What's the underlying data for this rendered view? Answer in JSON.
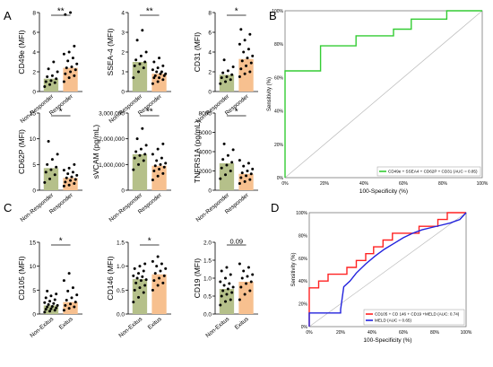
{
  "panel_labels": {
    "A": "A",
    "B": "B",
    "C": "C",
    "D": "D"
  },
  "chart_data": [
    {
      "type": "bar",
      "panel": "A",
      "ylabel": "CD49e (MFI)",
      "categories": [
        "Non-Responder",
        "Responder"
      ],
      "yticks": [
        "0",
        "2",
        "4",
        "6",
        "8"
      ],
      "ylim": [
        0,
        8
      ],
      "values": [
        1.3,
        2.4
      ],
      "significance": "**",
      "points": [
        [
          0.5,
          0.7,
          0.9,
          1.0,
          1.1,
          1.3,
          1.5,
          1.6,
          2.0,
          2.3,
          3.0
        ],
        [
          1.0,
          1.4,
          1.6,
          1.8,
          2.0,
          2.2,
          2.4,
          2.5,
          2.8,
          3.1,
          3.4,
          3.8,
          4.0,
          4.6,
          7.8,
          8.0
        ]
      ]
    },
    {
      "type": "bar",
      "panel": "A",
      "ylabel": "SSEA-4 (MFI)",
      "categories": [
        "Non-Responder",
        "Responder"
      ],
      "yticks": [
        "0",
        "1",
        "2",
        "3",
        "4"
      ],
      "ylim": [
        0,
        4
      ],
      "values": [
        1.5,
        0.9
      ],
      "significance": "**",
      "points": [
        [
          0.7,
          1.0,
          1.2,
          1.3,
          1.4,
          1.5,
          1.6,
          1.8,
          2.0,
          2.6,
          3.1
        ],
        [
          0.4,
          0.5,
          0.6,
          0.7,
          0.7,
          0.8,
          0.8,
          0.9,
          0.9,
          1.0,
          1.0,
          1.1,
          1.2,
          1.3,
          1.5,
          1.7
        ]
      ]
    },
    {
      "type": "bar",
      "panel": "A",
      "ylabel": "CD31 (MFI)",
      "categories": [
        "Non-Responder",
        "Responder"
      ],
      "yticks": [
        "0",
        "2",
        "4",
        "6",
        "8"
      ],
      "ylim": [
        0,
        8
      ],
      "values": [
        1.7,
        3.3
      ],
      "significance": "*",
      "points": [
        [
          0.8,
          1.0,
          1.2,
          1.4,
          1.5,
          1.7,
          1.9,
          2.1,
          2.5,
          3.2
        ],
        [
          1.5,
          1.8,
          2.0,
          2.3,
          2.6,
          2.9,
          3.1,
          3.4,
          3.6,
          4.0,
          4.3,
          4.8,
          5.2,
          5.8,
          6.3
        ]
      ]
    },
    {
      "type": "bar",
      "panel": "A",
      "ylabel": "CD62P (MFI)",
      "categories": [
        "Non-Responder",
        "Responder"
      ],
      "yticks": [
        "0",
        "5",
        "10",
        "15"
      ],
      "ylim": [
        0,
        15
      ],
      "values": [
        4.3,
        2.4
      ],
      "significance": "*",
      "points": [
        [
          1.5,
          2.2,
          3.0,
          3.5,
          4.0,
          4.5,
          5.0,
          6.0,
          7.0,
          9.5
        ],
        [
          0.8,
          1.0,
          1.3,
          1.6,
          1.9,
          2.1,
          2.4,
          2.6,
          2.9,
          3.2,
          3.5,
          3.9,
          4.3,
          5.0
        ]
      ]
    },
    {
      "type": "bar",
      "panel": "A",
      "ylabel": "sVCAM (pg/mL)",
      "categories": [
        "Non-Responder",
        "Responder"
      ],
      "yticks": [
        "0",
        "1,000,000",
        "2,000,000",
        "3,000,000"
      ],
      "ylim": [
        0,
        3000000
      ],
      "values": [
        1400000,
        950000
      ],
      "significance": "**",
      "points": [
        [
          800000,
          1000000,
          1150000,
          1250000,
          1350000,
          1400000,
          1500000,
          1600000,
          1750000,
          2000000,
          2400000
        ],
        [
          400000,
          550000,
          650000,
          750000,
          820000,
          900000,
          950000,
          1000000,
          1050000,
          1150000,
          1250000,
          1400000,
          1600000,
          1800000
        ]
      ]
    },
    {
      "type": "bar",
      "panel": "A",
      "ylabel": "TNFRS1A (pg/mL)",
      "categories": [
        "Non-Responder",
        "Responder"
      ],
      "yticks": [
        "0",
        "2000",
        "4000",
        "6000",
        "8000"
      ],
      "ylim": [
        0,
        8000
      ],
      "values": [
        2800,
        1700
      ],
      "significance": "*",
      "points": [
        [
          1200,
          1600,
          2000,
          2300,
          2600,
          2900,
          3200,
          3600,
          4200,
          4800
        ],
        [
          700,
          900,
          1100,
          1300,
          1500,
          1700,
          1800,
          2000,
          2200,
          2500,
          2800,
          3100
        ]
      ]
    },
    {
      "type": "line",
      "panel": "B",
      "xlabel": "100-Specificity (%)",
      "ylabel": "Sensitivity (%)",
      "xlim": [
        0,
        100
      ],
      "ylim": [
        0,
        100
      ],
      "xticks": [
        "0%",
        "20%",
        "40%",
        "60%",
        "80%",
        "100%"
      ],
      "yticks": [
        "0%",
        "20%",
        "40%",
        "60%",
        "80%",
        "100%"
      ],
      "legend_position": "bottom-right",
      "series": [
        {
          "name": "CD49e + SSEA4 + CD62P + CD31 (AUC = 0.85)",
          "color": "#33cc33",
          "x": [
            0,
            0,
            18,
            18,
            36,
            36,
            55,
            55,
            64,
            64,
            82,
            82,
            100
          ],
          "y": [
            0,
            64,
            64,
            79,
            79,
            85,
            85,
            89,
            89,
            95,
            95,
            100,
            100
          ]
        }
      ],
      "reference_line": true
    },
    {
      "type": "bar",
      "panel": "C",
      "ylabel": "CD105 (MFI)",
      "categories": [
        "Non-Exitus",
        "Exitus"
      ],
      "yticks": [
        "0",
        "5",
        "10",
        "15"
      ],
      "ylim": [
        0,
        15
      ],
      "values": [
        1.8,
        2.5
      ],
      "significance": "*",
      "points": [
        [
          0.4,
          0.6,
          0.8,
          1.0,
          1.1,
          1.3,
          1.5,
          1.6,
          1.8,
          2.0,
          2.2,
          2.4,
          2.7,
          3.0,
          3.4,
          3.8,
          4.2,
          4.8
        ],
        [
          0.8,
          1.2,
          1.5,
          1.8,
          2.1,
          2.5,
          2.9,
          3.4,
          4.0,
          4.8,
          5.5,
          7.0,
          8.5
        ]
      ]
    },
    {
      "type": "bar",
      "panel": "C",
      "ylabel": "CD146 (MFI)",
      "categories": [
        "Non-Exitus",
        "Exitus"
      ],
      "yticks": [
        "0.0",
        "0.5",
        "1.0",
        "1.5"
      ],
      "ylim": [
        0,
        1.5
      ],
      "values": [
        0.73,
        0.83
      ],
      "significance": "*",
      "points": [
        [
          0.25,
          0.35,
          0.45,
          0.5,
          0.55,
          0.6,
          0.65,
          0.7,
          0.72,
          0.75,
          0.78,
          0.8,
          0.85,
          0.9,
          0.95,
          1.0,
          1.05
        ],
        [
          0.5,
          0.6,
          0.65,
          0.7,
          0.75,
          0.8,
          0.85,
          0.9,
          0.95,
          1.0,
          1.05,
          1.1,
          1.2
        ]
      ]
    },
    {
      "type": "bar",
      "panel": "C",
      "ylabel": "CD19 (MFI)",
      "categories": [
        "Non-Exitus",
        "Exitus"
      ],
      "yticks": [
        "0.0",
        "0.5",
        "1.0",
        "1.5",
        "2.0"
      ],
      "ylim": [
        0,
        2.0
      ],
      "values": [
        0.7,
        0.9
      ],
      "significance": "0.09",
      "points": [
        [
          0.25,
          0.35,
          0.4,
          0.5,
          0.55,
          0.6,
          0.65,
          0.7,
          0.75,
          0.8,
          0.85,
          0.9,
          1.0,
          1.1,
          1.2,
          1.3
        ],
        [
          0.4,
          0.55,
          0.65,
          0.75,
          0.85,
          0.9,
          1.0,
          1.05,
          1.1,
          1.2,
          1.3,
          1.4
        ]
      ]
    },
    {
      "type": "line",
      "panel": "D",
      "xlabel": "100-Specificity (%)",
      "ylabel": "Sensitivity (%)",
      "xlim": [
        0,
        100
      ],
      "ylim": [
        0,
        100
      ],
      "xticks": [
        "0%",
        "20%",
        "40%",
        "60%",
        "80%",
        "100%"
      ],
      "yticks": [
        "0%",
        "20%",
        "40%",
        "60%",
        "80%",
        "100%"
      ],
      "legend_position": "bottom-right",
      "series": [
        {
          "name": "CD105 + CD 146 + CD19 +MELD (AUC: 0.74)",
          "color": "#ff2222",
          "x": [
            0,
            0,
            6,
            6,
            12,
            12,
            18,
            18,
            24,
            24,
            30,
            30,
            36,
            36,
            41,
            41,
            47,
            47,
            53,
            53,
            59,
            59,
            64,
            64,
            70,
            70,
            76,
            76,
            82,
            82,
            88,
            88,
            100
          ],
          "y": [
            0,
            34,
            34,
            40,
            40,
            46,
            46,
            46,
            46,
            52,
            52,
            58,
            58,
            64,
            64,
            70,
            70,
            76,
            76,
            82,
            82,
            82,
            82,
            82,
            82,
            88,
            88,
            88,
            88,
            94,
            94,
            100,
            100
          ]
        },
        {
          "name": "MELD (AUC = 0.65)",
          "color": "#2222dd",
          "x": [
            0,
            0,
            20,
            20,
            22,
            26,
            30,
            36,
            42,
            48,
            54,
            60,
            66,
            72,
            78,
            84,
            90,
            96,
            100
          ],
          "y": [
            0,
            12,
            12,
            15,
            35,
            40,
            47,
            55,
            62,
            68,
            73,
            78,
            82,
            85,
            87,
            89,
            91,
            94,
            100
          ]
        }
      ],
      "reference_line": true
    }
  ]
}
